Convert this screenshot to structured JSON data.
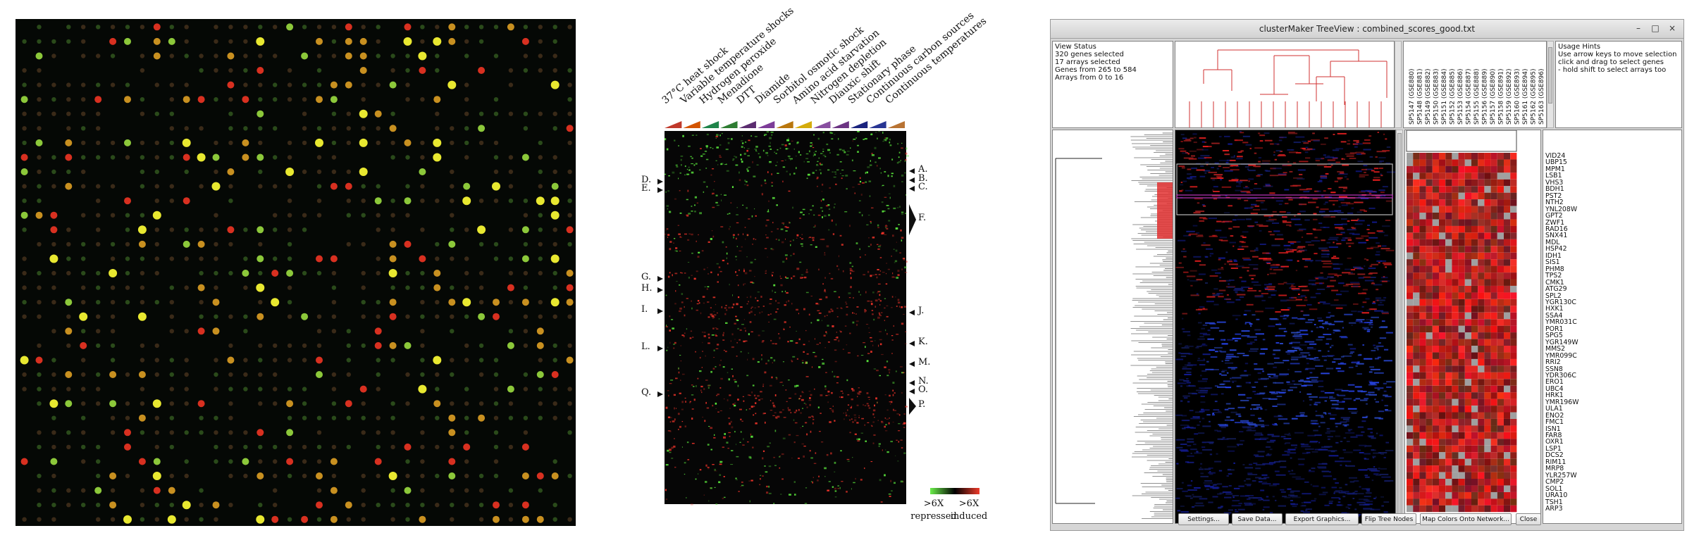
{
  "figure": {
    "conditions": [
      "37°C heat shock",
      "Variable temperature shocks",
      "Hydrogen peroxide",
      "Menadione",
      "DTT",
      "Diamide",
      "Sorbitol osmotic shock",
      "Amino acid starvation",
      "Nitrogen depletion",
      "Diauxic shift",
      "Stationary phase",
      "Continuous carbon sources",
      "Continuous temperatures"
    ],
    "condition_colors": [
      "#c0392b",
      "#d35400",
      "#1e8449",
      "#2e7d32",
      "#5b2c6f",
      "#7d3c98",
      "#b9770e",
      "#d4ac0d",
      "#884ea0",
      "#6c3483",
      "#1a237e",
      "#283593",
      "#b87333"
    ],
    "left_labels": [
      "D.",
      "E.",
      "G.",
      "H.",
      "I.",
      "L.",
      "Q."
    ],
    "right_labels": [
      "A.",
      "B.",
      "C.",
      "F.",
      "J.",
      "K.",
      "M.",
      "N.",
      "O.",
      "P."
    ],
    "legend": {
      "left_top": ">6X",
      "left_bottom": "repressed",
      "right_top": ">6X",
      "right_bottom": "induced"
    }
  },
  "treeview": {
    "title": "clusterMaker TreeView : combined_scores_good.txt",
    "status_lines": [
      "View Status",
      "320 genes selected",
      "17 arrays selected",
      "Genes from 265 to 584",
      "Arrays from 0 to 16"
    ],
    "hints": [
      "Usage Hints",
      "Use arrow keys to move selection",
      "click and drag to select genes",
      "- hold shift to select arrays too"
    ],
    "array_names": [
      "SP5147 (GSE880)",
      "SP5148 (GSE881)",
      "SP5149 (GSE882)",
      "SP5150 (GSE883)",
      "SP5151 (GSE884)",
      "SP5152 (GSE885)",
      "SP5153 (GSE886)",
      "SP5154 (GSE887)",
      "SP5155 (GSE888)",
      "SP5156 (GSE889)",
      "SP5157 (GSE890)",
      "SP5158 (GSE891)",
      "SP5159 (GSE892)",
      "SP5160 (GSE893)",
      "SP5161 (GSE894)",
      "SP5162 (GSE895)",
      "SP5163 (GSE896)"
    ],
    "genes": [
      "VID24",
      "UBP15",
      "MPM1",
      "LSB1",
      "VHS3",
      "BDH1",
      "PST2",
      "NTH2",
      "YNL208W",
      "GPT2",
      "ZWF1",
      "RAD16",
      "SNX41",
      "MDL",
      "HSP42",
      "IDH1",
      "SIS1",
      "PHM8",
      "TPS2",
      "CMK1",
      "ATG29",
      "SPL2",
      "YGR130C",
      "HXK1",
      "SSA4",
      "YMR031C",
      "POR1",
      "SPG5",
      "YGR149W",
      "MMS2",
      "YMR099C",
      "RRI2",
      "SSN8",
      "YDR306C",
      "ERO1",
      "UBC4",
      "HRK1",
      "YMR196W",
      "ULA1",
      "ENO2",
      "FMC1",
      "ISN1",
      "FAR8",
      "OXR1",
      "LSP1",
      "DCS2",
      "RIM11",
      "MRP8",
      "YLR257W",
      "CMP2",
      "SOL1",
      "URA10",
      "TSH1",
      "ARP3"
    ],
    "buttons": [
      "Settings...",
      "Save Data...",
      "Export Graphics...",
      "Flip Tree Nodes",
      "Map Colors Onto Network...",
      "Close"
    ],
    "window_controls": {
      "minimize": "–",
      "maximize": "□",
      "close": "×"
    }
  }
}
